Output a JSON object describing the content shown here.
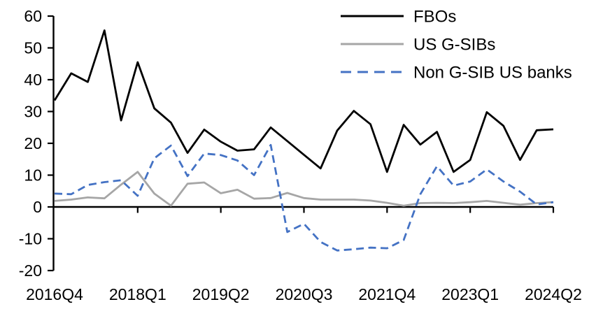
{
  "chart_data": {
    "type": "line",
    "title": "",
    "xlabel": "",
    "ylabel": "",
    "grid": false,
    "legend_position": "top-right",
    "ylim": [
      -20,
      60
    ],
    "y_ticks": [
      60,
      50,
      40,
      30,
      20,
      10,
      0,
      -10,
      -20
    ],
    "x_tick_labels": [
      "2016Q4",
      "2018Q1",
      "2019Q2",
      "2020Q3",
      "2021Q4",
      "2023Q1",
      "2024Q2"
    ],
    "x_tick_indices": [
      0,
      5,
      10,
      15,
      20,
      25,
      30
    ],
    "categories": [
      "2016Q4",
      "2017Q1",
      "2017Q2",
      "2017Q3",
      "2017Q4",
      "2018Q1",
      "2018Q2",
      "2018Q3",
      "2018Q4",
      "2019Q1",
      "2019Q2",
      "2019Q3",
      "2019Q4",
      "2020Q1",
      "2020Q2",
      "2020Q3",
      "2020Q4",
      "2021Q1",
      "2021Q2",
      "2021Q3",
      "2021Q4",
      "2022Q1",
      "2022Q2",
      "2022Q3",
      "2022Q4",
      "2023Q1",
      "2023Q2",
      "2023Q3",
      "2023Q4",
      "2024Q1",
      "2024Q2"
    ],
    "series": [
      {
        "name": "FBOs",
        "color": "#000000",
        "style": "solid",
        "values": [
          33.5,
          42.0,
          39.3,
          55.5,
          27.2,
          45.5,
          31.0,
          26.5,
          17.0,
          24.3,
          20.5,
          17.7,
          18.1,
          25.0,
          20.7,
          16.4,
          12.1,
          24.0,
          30.2,
          26.0,
          11.0,
          25.8,
          19.6,
          23.6,
          11.0,
          14.8,
          29.8,
          25.5,
          14.8,
          24.1,
          24.4
        ]
      },
      {
        "name": "US G-SIBs",
        "color": "#a6a6a6",
        "style": "solid",
        "values": [
          1.9,
          2.3,
          3.0,
          2.7,
          7.0,
          11.0,
          4.2,
          0.4,
          7.3,
          7.7,
          4.3,
          5.4,
          2.6,
          2.8,
          4.4,
          2.8,
          2.3,
          2.3,
          2.3,
          2.0,
          1.3,
          0.4,
          1.2,
          1.3,
          1.2,
          1.5,
          1.9,
          1.3,
          0.7,
          1.2,
          1.5
        ]
      },
      {
        "name": "Non G-SIB US banks",
        "color": "#4472c4",
        "style": "dashed",
        "values": [
          4.2,
          4.0,
          6.9,
          7.8,
          8.4,
          3.5,
          15.3,
          19.3,
          9.7,
          16.8,
          16.3,
          14.6,
          10.0,
          19.5,
          -7.9,
          -5.3,
          -11.0,
          -13.7,
          -13.3,
          -12.8,
          -13.0,
          -10.4,
          4.0,
          12.8,
          6.7,
          8.0,
          11.8,
          8.0,
          4.8,
          0.8,
          1.5
        ]
      }
    ]
  }
}
